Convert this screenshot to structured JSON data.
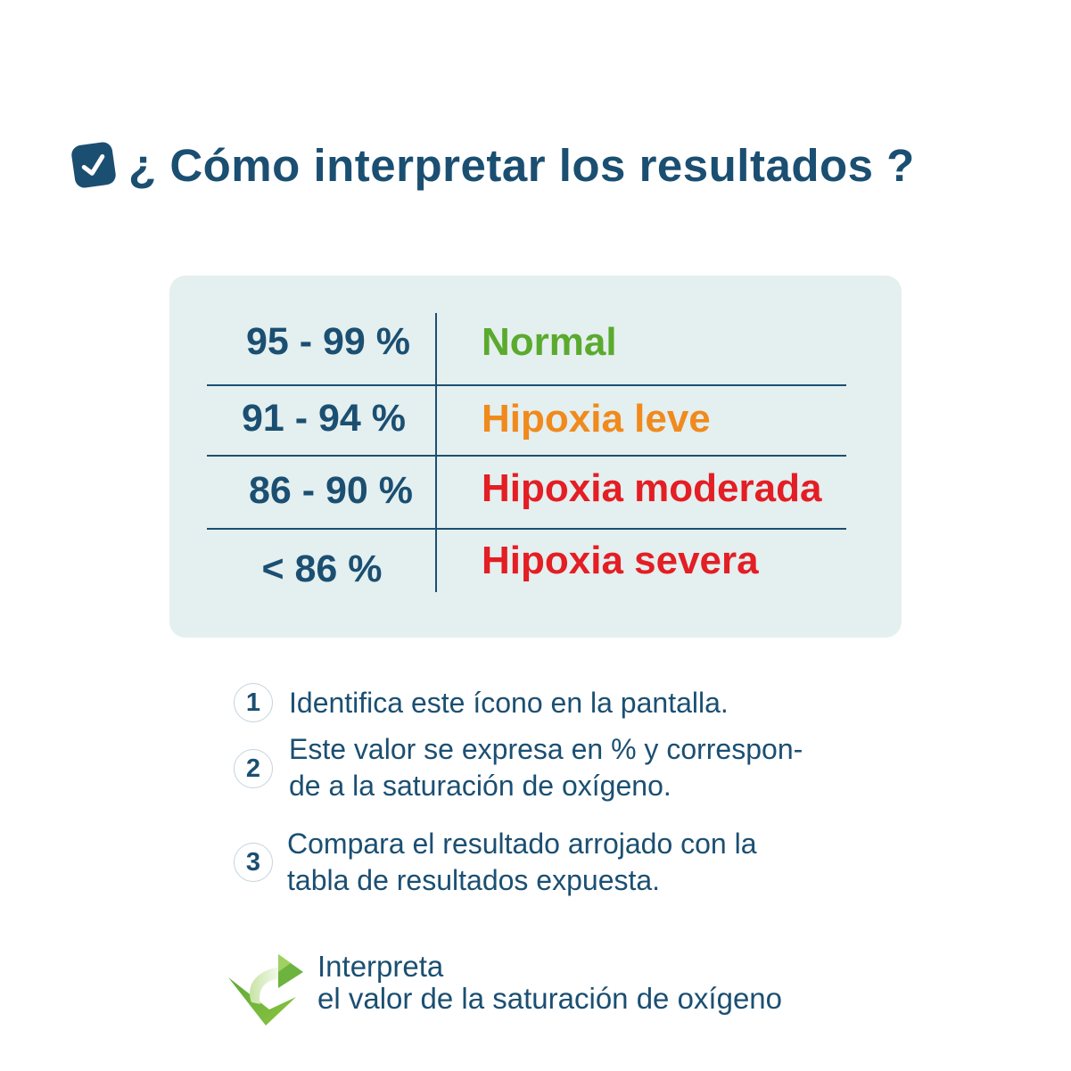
{
  "title": "¿ Cómo interpretar los resultados ?",
  "icons": {
    "title_icon": "check-square-icon",
    "footer_icon": "curved-arrow-icon"
  },
  "colors": {
    "primary": "#1b4f72",
    "card_background": "#e4efef",
    "normal": "#5aaa2e",
    "mild": "#f08a1d",
    "moderate": "#e31e24",
    "severe": "#e31e24"
  },
  "table": {
    "rows": [
      {
        "range": "95 - 99 %",
        "status": "Normal"
      },
      {
        "range": "91 - 94 %",
        "status": "Hipoxia leve"
      },
      {
        "range": "86 - 90 %",
        "status": "Hipoxia moderada"
      },
      {
        "range": "< 86 %",
        "status": "Hipoxia severa"
      }
    ]
  },
  "steps": [
    {
      "number": "1",
      "line1": "Identifica este  ícono en la pantalla.",
      "line2": ""
    },
    {
      "number": "2",
      "line1": "Este valor se expresa en % y correspon-",
      "line2": "de a la saturación de oxígeno."
    },
    {
      "number": "3",
      "line1": "Compara  el resultado arrojado con la",
      "line2": "tabla de resultados expuesta."
    }
  ],
  "footer": {
    "line1": "Interpreta",
    "line2": "el valor de la saturación de oxígeno"
  }
}
